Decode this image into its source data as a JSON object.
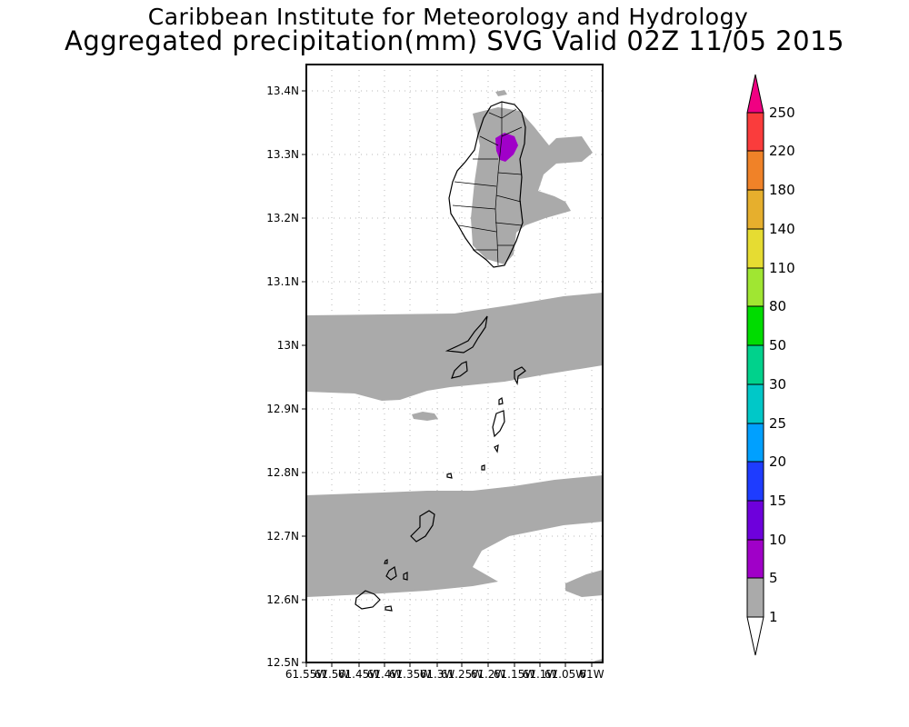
{
  "title": {
    "line1": "Caribbean Institute for Meteorology and Hydrology",
    "line2": "Aggregated precipitation(mm) SVG Valid 02Z 11/05 2015"
  },
  "map": {
    "lat_labels": [
      "13.4N",
      "13.3N",
      "13.2N",
      "13.1N",
      "13N",
      "12.9N",
      "12.8N",
      "12.7N",
      "12.6N",
      "12.5N"
    ],
    "lon_labels": [
      "61.55W",
      "61.5W",
      "61.45W",
      "61.4W",
      "61.35W",
      "61.3W",
      "61.25W",
      "61.2W",
      "61.15W",
      "61.1W",
      "61.05W",
      "61W"
    ],
    "lon_range": [
      -61.55,
      -61.0
    ],
    "lat_range": [
      12.5,
      13.44
    ],
    "precip_fill_color": "#aaaaaa",
    "heavy_precip_color": "#a000c8"
  },
  "legend": {
    "colors": [
      "#ffffff",
      "#aaaaaa",
      "#a000c8",
      "#6e00dc",
      "#1e3cff",
      "#00a0ff",
      "#00c8c8",
      "#00d28c",
      "#00dc00",
      "#a0e632",
      "#e6dc32",
      "#e6af2d",
      "#f08228",
      "#fa3c3c",
      "#f00082"
    ],
    "labels": [
      "1",
      "5",
      "10",
      "15",
      "20",
      "25",
      "30",
      "50",
      "80",
      "110",
      "140",
      "180",
      "220",
      "250"
    ]
  }
}
